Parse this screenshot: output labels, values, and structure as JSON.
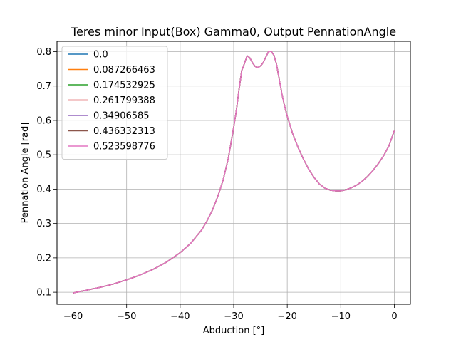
{
  "chart_data": {
    "type": "line",
    "title": "Teres minor Input(Box) Gamma0, Output PennationAngle",
    "xlabel": "Abduction [°]",
    "ylabel": "Pennation Angle [rad]",
    "xlim": [
      -63,
      3
    ],
    "ylim": [
      0.065,
      0.83
    ],
    "xticks": [
      -60,
      -50,
      -40,
      -30,
      -20,
      -10,
      0
    ],
    "yticks": [
      0.1,
      0.2,
      0.3,
      0.4,
      0.5,
      0.6,
      0.7,
      0.8
    ],
    "xtick_labels": [
      "−60",
      "−50",
      "−40",
      "−30",
      "−20",
      "−10",
      "0"
    ],
    "ytick_labels": [
      "0.1",
      "0.2",
      "0.3",
      "0.4",
      "0.5",
      "0.6",
      "0.7",
      "0.8"
    ],
    "grid": true,
    "legend_position": "top-left",
    "x": [
      -60,
      -57.5,
      -55,
      -52.5,
      -50,
      -47.5,
      -45,
      -42.5,
      -40,
      -38,
      -36,
      -35,
      -34,
      -33,
      -32,
      -31,
      -30,
      -29.5,
      -29,
      -28.5,
      -28,
      -27.5,
      -27,
      -26.5,
      -26,
      -25.5,
      -25,
      -24.5,
      -24,
      -23.5,
      -23,
      -22.5,
      -22,
      -21.5,
      -21,
      -20.5,
      -20,
      -19,
      -18,
      -17,
      -16,
      -15,
      -14,
      -13,
      -12,
      -11,
      -10,
      -9,
      -8,
      -7,
      -6,
      -5,
      -4,
      -3,
      -2,
      -1,
      0
    ],
    "series": [
      {
        "name": "0.0",
        "color": "#1f77b4",
        "values": [
          0.098,
          0.106,
          0.114,
          0.124,
          0.136,
          0.15,
          0.167,
          0.188,
          0.215,
          0.243,
          0.281,
          0.307,
          0.338,
          0.377,
          0.425,
          0.49,
          0.58,
          0.63,
          0.69,
          0.745,
          0.765,
          0.788,
          0.782,
          0.768,
          0.757,
          0.754,
          0.758,
          0.768,
          0.784,
          0.8,
          0.801,
          0.79,
          0.763,
          0.72,
          0.677,
          0.642,
          0.612,
          0.562,
          0.522,
          0.488,
          0.458,
          0.434,
          0.415,
          0.403,
          0.397,
          0.395,
          0.395,
          0.398,
          0.404,
          0.412,
          0.423,
          0.437,
          0.454,
          0.474,
          0.497,
          0.526,
          0.57
        ]
      },
      {
        "name": "0.087266463",
        "color": "#ff7f0e",
        "values": [
          0.098,
          0.106,
          0.114,
          0.124,
          0.136,
          0.15,
          0.167,
          0.188,
          0.215,
          0.243,
          0.281,
          0.307,
          0.338,
          0.377,
          0.425,
          0.49,
          0.58,
          0.63,
          0.69,
          0.745,
          0.765,
          0.788,
          0.782,
          0.768,
          0.757,
          0.754,
          0.758,
          0.768,
          0.784,
          0.8,
          0.801,
          0.79,
          0.763,
          0.72,
          0.677,
          0.642,
          0.612,
          0.562,
          0.522,
          0.488,
          0.458,
          0.434,
          0.415,
          0.403,
          0.397,
          0.395,
          0.395,
          0.398,
          0.404,
          0.412,
          0.423,
          0.437,
          0.454,
          0.474,
          0.497,
          0.526,
          0.57
        ]
      },
      {
        "name": "0.174532925",
        "color": "#2ca02c",
        "values": [
          0.098,
          0.106,
          0.114,
          0.124,
          0.136,
          0.15,
          0.167,
          0.188,
          0.215,
          0.243,
          0.281,
          0.307,
          0.338,
          0.377,
          0.425,
          0.49,
          0.58,
          0.63,
          0.69,
          0.745,
          0.765,
          0.788,
          0.782,
          0.768,
          0.757,
          0.754,
          0.758,
          0.768,
          0.784,
          0.8,
          0.801,
          0.79,
          0.763,
          0.72,
          0.677,
          0.642,
          0.612,
          0.562,
          0.522,
          0.488,
          0.458,
          0.434,
          0.415,
          0.403,
          0.397,
          0.395,
          0.395,
          0.398,
          0.404,
          0.412,
          0.423,
          0.437,
          0.454,
          0.474,
          0.497,
          0.526,
          0.57
        ]
      },
      {
        "name": "0.261799388",
        "color": "#d62728",
        "values": [
          0.098,
          0.106,
          0.114,
          0.124,
          0.136,
          0.15,
          0.167,
          0.188,
          0.215,
          0.243,
          0.281,
          0.307,
          0.338,
          0.377,
          0.425,
          0.49,
          0.58,
          0.63,
          0.69,
          0.745,
          0.765,
          0.788,
          0.782,
          0.768,
          0.757,
          0.754,
          0.758,
          0.768,
          0.784,
          0.8,
          0.801,
          0.79,
          0.763,
          0.72,
          0.677,
          0.642,
          0.612,
          0.562,
          0.522,
          0.488,
          0.458,
          0.434,
          0.415,
          0.403,
          0.397,
          0.395,
          0.395,
          0.398,
          0.404,
          0.412,
          0.423,
          0.437,
          0.454,
          0.474,
          0.497,
          0.526,
          0.57
        ]
      },
      {
        "name": "0.34906585",
        "color": "#9467bd",
        "values": [
          0.098,
          0.106,
          0.114,
          0.124,
          0.136,
          0.15,
          0.167,
          0.188,
          0.215,
          0.243,
          0.281,
          0.307,
          0.338,
          0.377,
          0.425,
          0.49,
          0.58,
          0.63,
          0.69,
          0.745,
          0.765,
          0.788,
          0.782,
          0.768,
          0.757,
          0.754,
          0.758,
          0.768,
          0.784,
          0.8,
          0.801,
          0.79,
          0.763,
          0.72,
          0.677,
          0.642,
          0.612,
          0.562,
          0.522,
          0.488,
          0.458,
          0.434,
          0.415,
          0.403,
          0.397,
          0.395,
          0.395,
          0.398,
          0.404,
          0.412,
          0.423,
          0.437,
          0.454,
          0.474,
          0.497,
          0.526,
          0.57
        ]
      },
      {
        "name": "0.436332313",
        "color": "#8c564b",
        "values": [
          0.098,
          0.106,
          0.114,
          0.124,
          0.136,
          0.15,
          0.167,
          0.188,
          0.215,
          0.243,
          0.281,
          0.307,
          0.338,
          0.377,
          0.425,
          0.49,
          0.58,
          0.63,
          0.69,
          0.745,
          0.765,
          0.788,
          0.782,
          0.768,
          0.757,
          0.754,
          0.758,
          0.768,
          0.784,
          0.8,
          0.801,
          0.79,
          0.763,
          0.72,
          0.677,
          0.642,
          0.612,
          0.562,
          0.522,
          0.488,
          0.458,
          0.434,
          0.415,
          0.403,
          0.397,
          0.395,
          0.395,
          0.398,
          0.404,
          0.412,
          0.423,
          0.437,
          0.454,
          0.474,
          0.497,
          0.526,
          0.57
        ]
      },
      {
        "name": "0.523598776",
        "color": "#e377c2",
        "values": [
          0.098,
          0.106,
          0.114,
          0.124,
          0.136,
          0.15,
          0.167,
          0.188,
          0.215,
          0.243,
          0.281,
          0.307,
          0.338,
          0.377,
          0.425,
          0.49,
          0.58,
          0.63,
          0.69,
          0.745,
          0.765,
          0.788,
          0.782,
          0.768,
          0.757,
          0.754,
          0.758,
          0.768,
          0.784,
          0.8,
          0.801,
          0.79,
          0.763,
          0.72,
          0.677,
          0.642,
          0.612,
          0.562,
          0.522,
          0.488,
          0.458,
          0.434,
          0.415,
          0.403,
          0.397,
          0.395,
          0.395,
          0.398,
          0.404,
          0.412,
          0.423,
          0.437,
          0.454,
          0.474,
          0.497,
          0.526,
          0.57
        ]
      }
    ]
  }
}
